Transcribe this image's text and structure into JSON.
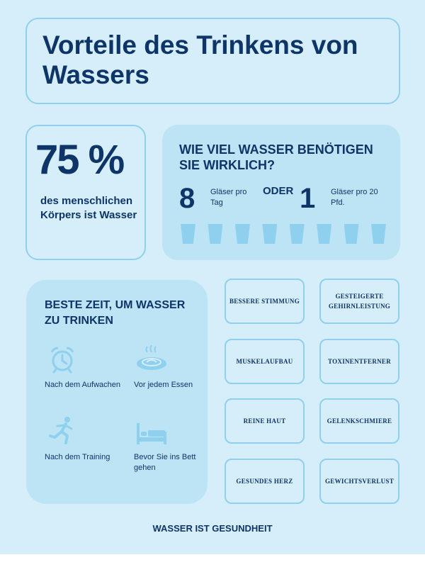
{
  "title": "Vorteile des Trinkens von Wassers",
  "body_percent": {
    "value": "75 %",
    "text": "des menschlichen Körpers ist Wasser"
  },
  "water_need": {
    "heading": "WIE VIEL WASSER BENÖTIGEN SIE WIRKLICH?",
    "option_a_number": "8",
    "option_a_text": "Gläser pro Tag",
    "or_text": "ODER",
    "option_b_number": "1",
    "option_b_text": "Gläser pro 20 Pfd.",
    "glass_count": 8,
    "glass_icon": "water-glass-icon"
  },
  "best_time": {
    "heading": "BESTE ZEIT, UM WASSER ZU TRINKEN",
    "items": [
      {
        "label": "Nach dem Aufwachen",
        "icon": "alarm-clock-icon"
      },
      {
        "label": "Vor jedem Essen",
        "icon": "food-plate-icon"
      },
      {
        "label": "Nach dem Training",
        "icon": "running-person-icon"
      },
      {
        "label": "Bevor Sie ins Bett gehen",
        "icon": "bed-icon"
      }
    ]
  },
  "benefits": [
    "BESSERE STIMMUNG",
    "GESTEIGERTE GEHIRNLEISTUNG",
    "MUSKELAUFBAU",
    "TOXINENTFERNER",
    "REINE HAUT",
    "GELENKSCHMIERE",
    "GESUNDES HERZ",
    "GEWICHTSVERLUST"
  ],
  "footer": "WASSER IST GESUNDHEIT",
  "colors": {
    "background": "#d6eefa",
    "panel": "#bde4f5",
    "accent": "#8fd0ef",
    "text": "#0e3567"
  }
}
